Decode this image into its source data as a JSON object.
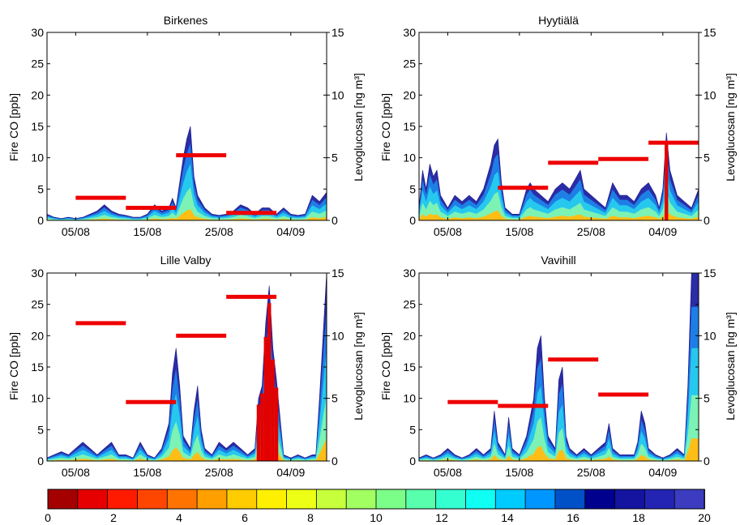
{
  "chart_data": [
    {
      "type": "area",
      "title": "Birkenes",
      "ylabel_left": "Fire CO [ppb]",
      "ylabel_right": "Levoglucosan [ng m³]",
      "ylim_left": [
        0,
        30
      ],
      "ylim_right": [
        0,
        15
      ],
      "yticks_left": [
        "0",
        "5",
        "10",
        "15",
        "20",
        "25",
        "30"
      ],
      "yticks_right": [
        "0",
        "5",
        "10",
        "15"
      ],
      "xticks": [
        "05/08",
        "15/08",
        "25/08",
        "04/09"
      ],
      "x_range": [
        "01/08",
        "09/09"
      ],
      "fire_co_envelope": {
        "days": [
          0,
          1,
          2,
          3,
          4,
          5,
          6,
          7,
          8,
          9,
          10,
          11,
          12,
          13,
          14,
          15,
          16,
          17,
          17.5,
          18,
          19,
          19.5,
          20,
          20.5,
          21,
          22,
          23,
          24,
          25,
          26,
          27,
          28,
          29,
          30,
          31,
          32,
          33,
          34,
          35,
          36,
          37,
          38,
          39
        ],
        "values": [
          1,
          0.5,
          0.3,
          0.5,
          0.3,
          0.5,
          1,
          1.5,
          2.5,
          1.5,
          1,
          0.8,
          0.5,
          0.5,
          1,
          2.5,
          1.5,
          2,
          3.5,
          2,
          10,
          13,
          15,
          7,
          4,
          2,
          1,
          0.8,
          1,
          1.5,
          2.5,
          2,
          1,
          2,
          2,
          1,
          2,
          1,
          0.8,
          1,
          4,
          3,
          4.5
        ]
      },
      "levoglucosan_bars": [
        {
          "from": "05/08",
          "to": "12/08",
          "value": 1.8
        },
        {
          "from": "12/08",
          "to": "19/08",
          "value": 1.0
        },
        {
          "from": "19/08",
          "to": "26/08",
          "value": 5.2
        },
        {
          "from": "26/08",
          "to": "02/09",
          "value": 0.6
        }
      ]
    },
    {
      "type": "area",
      "title": "Hyytiälä",
      "ylabel_left": "Fire CO [ppb]",
      "ylabel_right": "Levoglucosan [ng m³]",
      "ylim_left": [
        0,
        30
      ],
      "ylim_right": [
        0,
        15
      ],
      "yticks_left": [
        "0",
        "5",
        "10",
        "15",
        "20",
        "25",
        "30"
      ],
      "yticks_right": [
        "0",
        "5",
        "10",
        "15"
      ],
      "xticks": [
        "05/08",
        "15/08",
        "25/08",
        "04/09"
      ],
      "x_range": [
        "01/08",
        "09/09"
      ],
      "fire_co_envelope": {
        "days": [
          0,
          0.5,
          1,
          1.5,
          2,
          2.5,
          3,
          3.5,
          4,
          5,
          6,
          7,
          8,
          9,
          10,
          10.5,
          11,
          11.5,
          12,
          13,
          14,
          15,
          15.5,
          16,
          17,
          18,
          19,
          20,
          21,
          22,
          22.5,
          23,
          24,
          25,
          26,
          27,
          28,
          29,
          30,
          31,
          32,
          33,
          33.5,
          34,
          34.5,
          35,
          36,
          37,
          38,
          39
        ],
        "values": [
          2,
          8,
          5,
          9,
          7,
          8,
          4,
          3,
          2,
          4,
          3,
          4,
          3,
          5,
          9,
          12,
          13,
          6,
          2,
          1,
          1,
          5,
          6,
          5,
          4,
          3,
          5,
          6,
          5,
          7,
          8,
          5,
          4,
          3,
          2,
          6,
          4,
          4,
          3,
          5,
          6,
          4,
          2,
          5,
          14,
          8,
          4,
          3,
          2,
          5
        ]
      },
      "levoglucosan_bars": [
        {
          "from": "12/08",
          "to": "19/08",
          "value": 2.6
        },
        {
          "from": "19/08",
          "to": "26/08",
          "value": 4.6
        },
        {
          "from": "26/08",
          "to": "02/09",
          "value": 4.9
        },
        {
          "from": "02/09",
          "to": "09/09",
          "value": 6.2
        }
      ]
    },
    {
      "type": "area",
      "title": "Lille Valby",
      "ylabel_left": "Fire CO [ppb]",
      "ylabel_right": "Levoglucosan [ng m³]",
      "ylim_left": [
        0,
        30
      ],
      "ylim_right": [
        0,
        15
      ],
      "yticks_left": [
        "0",
        "5",
        "10",
        "15",
        "20",
        "25",
        "30"
      ],
      "yticks_right": [
        "0",
        "5",
        "10",
        "15"
      ],
      "xticks": [
        "05/08",
        "15/08",
        "25/08",
        "04/09"
      ],
      "x_range": [
        "01/08",
        "09/09"
      ],
      "fire_co_envelope": {
        "days": [
          0,
          1,
          2,
          3,
          4,
          5,
          6,
          7,
          8,
          9,
          10,
          11,
          12,
          13,
          14,
          15,
          16,
          16.5,
          17,
          17.5,
          18,
          18.5,
          19,
          20,
          20.5,
          21,
          21.5,
          22,
          23,
          24,
          25,
          26,
          27,
          28,
          29,
          29.5,
          30,
          30.5,
          31,
          31.5,
          32,
          33,
          34,
          35,
          36,
          37,
          37.5,
          38,
          39
        ],
        "values": [
          0.5,
          1,
          1.5,
          1,
          2,
          3,
          2,
          1,
          2,
          3,
          1,
          1,
          0.5,
          3,
          1,
          0.5,
          2,
          4,
          6,
          14,
          18,
          12,
          4,
          2,
          8,
          12,
          5,
          2,
          1,
          3,
          2,
          3,
          2,
          1,
          2,
          10,
          12,
          22,
          28,
          18,
          13,
          1,
          0.5,
          1,
          0.5,
          1,
          1,
          10,
          30
        ]
      },
      "levoglucosan_bars": [
        {
          "from": "05/08",
          "to": "12/08",
          "value": 11.0
        },
        {
          "from": "12/08",
          "to": "19/08",
          "value": 4.7
        },
        {
          "from": "19/08",
          "to": "26/08",
          "value": 10.0
        },
        {
          "from": "26/08",
          "to": "02/09",
          "value": 13.1
        }
      ]
    },
    {
      "type": "area",
      "title": "Vavihill",
      "ylabel_left": "Fire CO [ppb]",
      "ylabel_right": "Levoglucosan [ng m³]",
      "ylim_left": [
        0,
        30
      ],
      "ylim_right": [
        0,
        15
      ],
      "yticks_left": [
        "0",
        "5",
        "10",
        "15",
        "20",
        "25",
        "30"
      ],
      "yticks_right": [
        "0",
        "5",
        "10",
        "15"
      ],
      "xticks": [
        "05/08",
        "15/08",
        "25/08",
        "04/09"
      ],
      "x_range": [
        "01/08",
        "09/09"
      ],
      "fire_co_envelope": {
        "days": [
          0,
          1,
          2,
          3,
          4,
          5,
          6,
          7,
          8,
          9,
          10,
          10.5,
          11,
          12,
          12.5,
          13,
          14,
          15,
          16,
          16.5,
          17,
          17.5,
          18,
          19,
          19.5,
          20,
          20.5,
          21,
          22,
          23,
          24,
          25,
          26,
          26.5,
          27,
          28,
          29,
          30,
          30.5,
          31,
          31.5,
          32,
          33,
          34,
          35,
          36,
          37,
          37.5,
          38,
          39
        ],
        "values": [
          0.5,
          1,
          0.5,
          1,
          2,
          1,
          0.5,
          1,
          2,
          1,
          2,
          8,
          3,
          1,
          7,
          2,
          1,
          4,
          10,
          18,
          20,
          10,
          4,
          2,
          13,
          15,
          4,
          2,
          1,
          2,
          1,
          2,
          3,
          6,
          2,
          1,
          1,
          1,
          3,
          8,
          6,
          2,
          1,
          0.5,
          1,
          2,
          1,
          12,
          30,
          30
        ]
      },
      "levoglucosan_bars": [
        {
          "from": "05/08",
          "to": "12/08",
          "value": 4.7
        },
        {
          "from": "12/08",
          "to": "19/08",
          "value": 4.4
        },
        {
          "from": "19/08",
          "to": "26/08",
          "value": 8.1
        },
        {
          "from": "26/08",
          "to": "02/09",
          "value": 5.3
        }
      ]
    }
  ],
  "colorbar": {
    "min": 0,
    "max": 20,
    "ticks": [
      "0",
      "2",
      "4",
      "6",
      "8",
      "10",
      "12",
      "14",
      "16",
      "18",
      "20"
    ],
    "colors": [
      "#a50000",
      "#e60000",
      "#ff1a00",
      "#ff4600",
      "#ff7300",
      "#ff9f00",
      "#ffcc00",
      "#fff000",
      "#eeff16",
      "#c8ff3c",
      "#a2ff62",
      "#7cff88",
      "#58ffac",
      "#34ffd0",
      "#10fff4",
      "#00cbff",
      "#0096ff",
      "#0050c8",
      "#00008f",
      "#1414a0",
      "#2424b4",
      "#3c3cc0"
    ]
  },
  "colors": {
    "levoglucosan": "#ee0000",
    "fire_high": "#2b2ca6",
    "fire_mid": "#1d7fe6",
    "fire_low": "#27c8ee",
    "fire_base": "#7cf2b4",
    "fire_near": "#ffbe16",
    "fire_source": "#e20000"
  }
}
